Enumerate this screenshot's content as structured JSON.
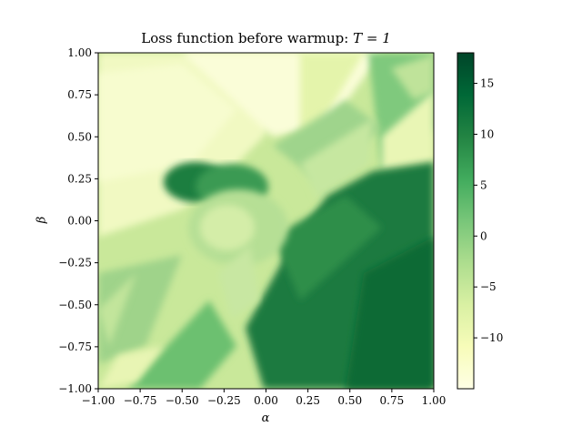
{
  "chart_data": {
    "type": "heatmap",
    "title_prefix": "Loss function before warmup: ",
    "title_math": "T = 1",
    "xlabel": "α",
    "ylabel": "β",
    "xlim": [
      -1.0,
      1.0
    ],
    "ylim": [
      -1.0,
      1.0
    ],
    "x_ticks": [
      "−1.00",
      "−0.75",
      "−0.50",
      "−0.25",
      "0.00",
      "0.25",
      "0.50",
      "0.75",
      "1.00"
    ],
    "y_ticks": [
      "1.00",
      "0.75",
      "0.50",
      "0.25",
      "0.00",
      "−0.25",
      "−0.50",
      "−0.75",
      "−1.00"
    ],
    "colorbar": {
      "cmap": "YlGn",
      "vmin": -15,
      "vmax": 18,
      "ticks": [
        15,
        10,
        5,
        0,
        -5,
        -10
      ],
      "tick_labels": [
        "15",
        "10",
        "5",
        "0",
        "−5",
        "−10"
      ],
      "colors": [
        "#ffffe5",
        "#f7fcb9",
        "#d9f0a3",
        "#addd8e",
        "#78c679",
        "#41ab5d",
        "#238443",
        "#006837",
        "#004529"
      ]
    },
    "regions": [
      {
        "desc": "upper-left",
        "alpha": [
          -1.0,
          -0.1
        ],
        "beta": [
          0.0,
          1.0
        ],
        "value": -10
      },
      {
        "desc": "top-middle",
        "alpha": [
          -0.3,
          0.6
        ],
        "beta": [
          0.6,
          1.0
        ],
        "value": -13
      },
      {
        "desc": "center blob",
        "alpha": [
          -0.35,
          0.2
        ],
        "beta": [
          -0.3,
          0.3
        ],
        "value": 2
      },
      {
        "desc": "lower-right",
        "alpha": [
          0.2,
          1.0
        ],
        "beta": [
          -1.0,
          0.4
        ],
        "value": 14
      },
      {
        "desc": "left edge lower",
        "alpha": [
          -1.0,
          -0.6
        ],
        "beta": [
          -0.8,
          -0.2
        ],
        "value": -2
      }
    ]
  }
}
